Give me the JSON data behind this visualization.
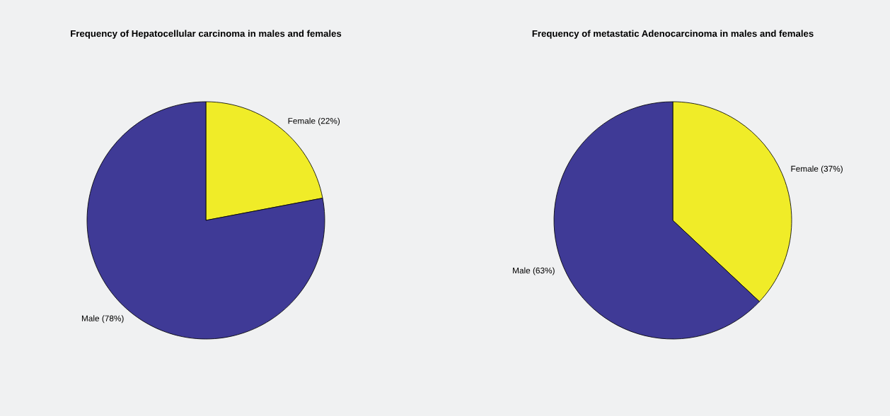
{
  "chart_data": [
    {
      "type": "pie",
      "title": "Frequency of Hepatocellular carcinoma in males and females",
      "categories": [
        "Female (22%)",
        "Male (78%)"
      ],
      "values": [
        22,
        78
      ],
      "colors": [
        "#f0ec28",
        "#3f3a96"
      ]
    },
    {
      "type": "pie",
      "title": "Frequency of metastatic Adenocarcinoma in males and females",
      "categories": [
        "Female (37%)",
        "Male (63%)"
      ],
      "values": [
        37,
        63
      ],
      "colors": [
        "#f0ec28",
        "#3f3a96"
      ]
    }
  ]
}
